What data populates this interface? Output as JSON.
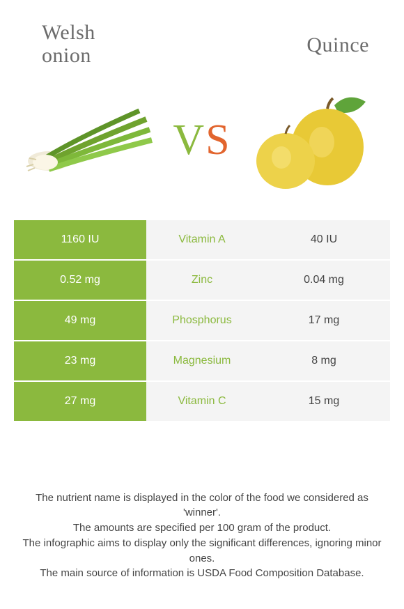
{
  "colors": {
    "left_food": "#8bb93e",
    "right_food": "#e2652e",
    "mid_bg": "#f4f4f4",
    "title_color": "#6b6b6b"
  },
  "left_food": {
    "name_line1": "Welsh",
    "name_line2": "onion"
  },
  "right_food": {
    "name": "Quince"
  },
  "vs": {
    "v": "V",
    "s": "S"
  },
  "rows": [
    {
      "nutrient": "Vitamin A",
      "left": "1160 IU",
      "right": "40 IU",
      "winner": "left"
    },
    {
      "nutrient": "Zinc",
      "left": "0.52 mg",
      "right": "0.04 mg",
      "winner": "left"
    },
    {
      "nutrient": "Phosphorus",
      "left": "49 mg",
      "right": "17 mg",
      "winner": "left"
    },
    {
      "nutrient": "Magnesium",
      "left": "23 mg",
      "right": "8 mg",
      "winner": "left"
    },
    {
      "nutrient": "Vitamin C",
      "left": "27 mg",
      "right": "15 mg",
      "winner": "left"
    }
  ],
  "footer": {
    "line1": "The nutrient name is displayed in the color of the food we considered as 'winner'.",
    "line2": "The amounts are specified per 100 gram of the product.",
    "line3": "The infographic aims to display only the significant differences, ignoring minor ones.",
    "line4": "The main source of information is USDA Food Composition Database."
  }
}
